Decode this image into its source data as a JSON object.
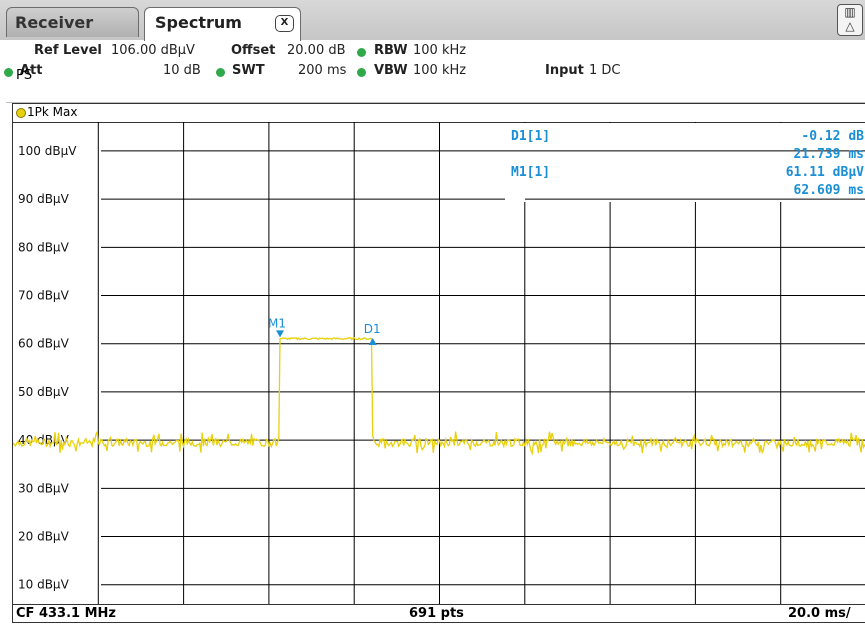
{
  "tabs": {
    "receiver": "Receiver",
    "spectrum": "Spectrum",
    "close": "X"
  },
  "params": {
    "ref_level_label": "Ref Level",
    "ref_level_value": "106.00 dBµV",
    "offset_label": "Offset",
    "offset_value": "20.00 dB",
    "rbw_label": "RBW",
    "rbw_value": "100 kHz",
    "att_label": "Att",
    "att_value": "10 dB",
    "swt_label": "SWT",
    "swt_value": "200 ms",
    "vbw_label": "VBW",
    "vbw_value": "100 kHz",
    "input_label": "Input",
    "input_value": "1 DC",
    "ps": "PS"
  },
  "trace": {
    "label": "1Pk Max"
  },
  "markers": {
    "d1_label": "D1[1]",
    "d1_level": "-0.12 dB",
    "d1_time": "21.739 ms",
    "m1_label": "M1[1]",
    "m1_level": "61.11 dBµV",
    "m1_time": "62.609 ms",
    "m1_tag": "M1",
    "d1_tag": "D1"
  },
  "y_ticks": [
    "100 dBµV",
    "90 dBµV",
    "80 dBµV",
    "70 dBµV",
    "60 dBµV",
    "50 dBµV",
    "40 dBµV",
    "30 dBµV",
    "20 dBµV",
    "10 dBµV"
  ],
  "footer": {
    "cf": "CF 433.1 MHz",
    "pts": "691 pts",
    "div": "20.0 ms/"
  },
  "colors": {
    "trace": "#e8d10c",
    "marker": "#1a8fd6",
    "grid": "#000000",
    "status_dot": "#2fa94a"
  },
  "chart_data": {
    "type": "line",
    "x_unit": "ms",
    "x_range": [
      0,
      200
    ],
    "y_unit": "dBµV",
    "ylim": [
      6,
      106
    ],
    "series": [
      {
        "x": [
          0,
          62.5,
          62.6,
          84.3,
          84.4,
          200
        ],
        "y": [
          39.5,
          39.5,
          61.1,
          61.0,
          39.5,
          39.5
        ]
      }
    ],
    "noise_floor_dbuv": 39.5,
    "markers": [
      {
        "name": "M1",
        "x": 62.609,
        "y": 61.11
      },
      {
        "name": "D1",
        "x": 84.348,
        "y": 60.99
      }
    ]
  }
}
